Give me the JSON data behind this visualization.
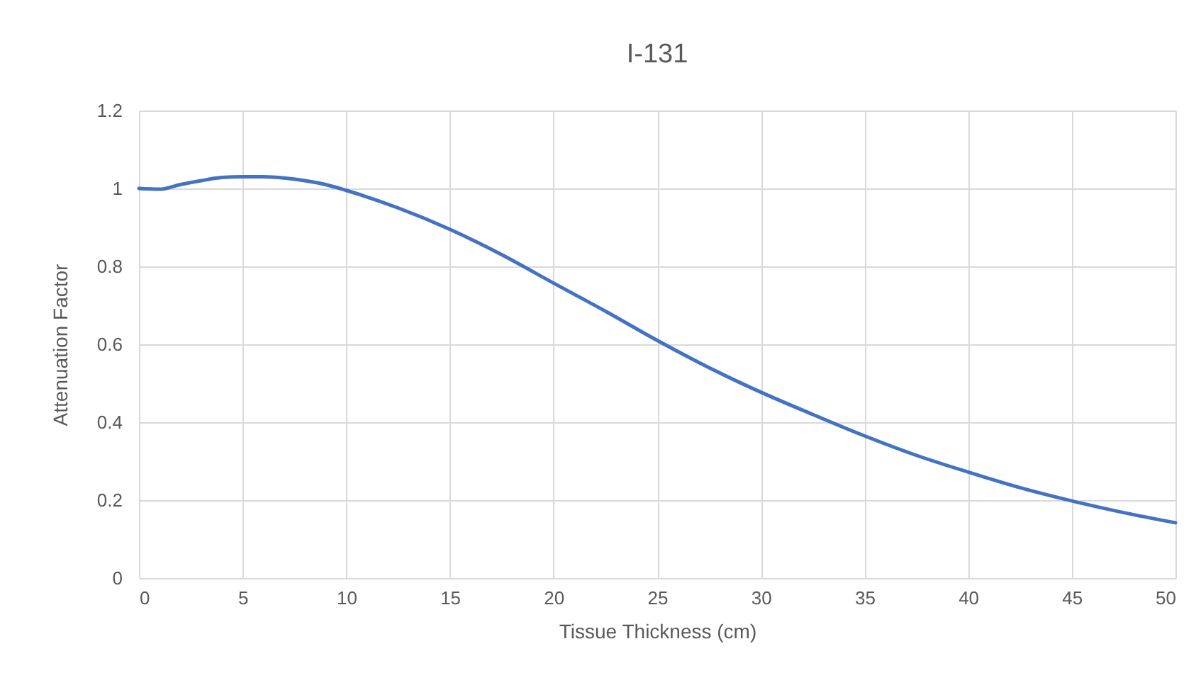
{
  "chart_data": {
    "type": "line",
    "title": "I-131",
    "xlabel": "Tissue Thickness (cm)",
    "ylabel": "Attenuation Factor",
    "x": [
      0,
      1,
      2,
      3,
      4,
      5,
      6,
      7,
      8,
      9,
      10,
      12.5,
      15,
      17.5,
      20,
      22.5,
      25,
      27.5,
      30,
      32.5,
      35,
      37.5,
      40,
      42.5,
      45,
      47.5,
      50
    ],
    "series": [
      {
        "color": "#4472c4",
        "values": [
          1.0,
          0.998,
          1.01,
          1.02,
          1.028,
          1.03,
          1.03,
          1.027,
          1.02,
          1.01,
          0.995,
          0.95,
          0.895,
          0.83,
          0.757,
          0.685,
          0.61,
          0.54,
          0.477,
          0.42,
          0.365,
          0.315,
          0.272,
          0.232,
          0.198,
          0.168,
          0.142
        ]
      }
    ],
    "xlim": [
      0,
      50
    ],
    "xticks": [
      0,
      5,
      10,
      15,
      20,
      25,
      30,
      35,
      40,
      45,
      50
    ],
    "ylim": [
      0,
      1.2
    ],
    "yticks": [
      0,
      0.2,
      0.4,
      0.6,
      0.8,
      1,
      1.2
    ],
    "grid": true,
    "marker": "none",
    "line_style": "solid"
  }
}
